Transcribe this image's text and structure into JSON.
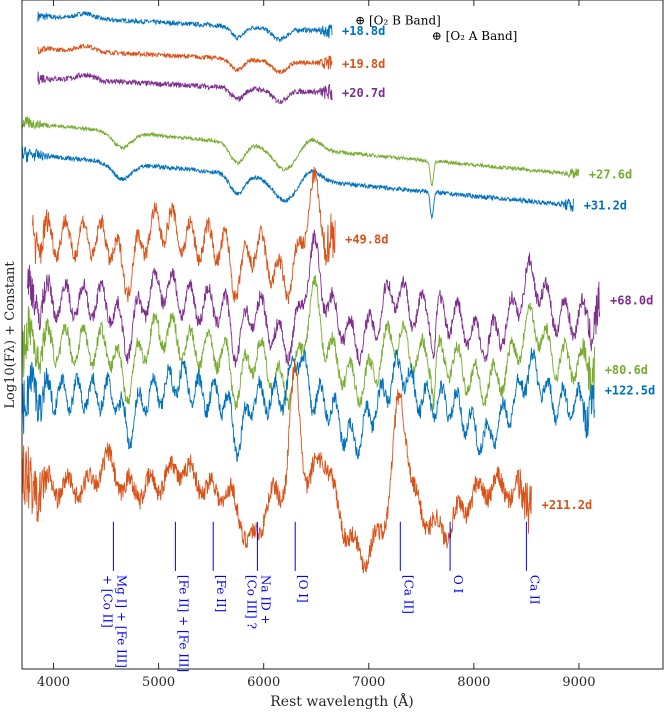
{
  "chart_data": {
    "type": "line",
    "xlabel": "Rest wavelength (Å)",
    "ylabel": "Log10(Fλ) + Constant",
    "xlim": [
      3700,
      9800
    ],
    "x_ticks": [
      4000,
      5000,
      6000,
      7000,
      8000,
      9000
    ],
    "x_tick_labels": [
      "4000",
      "5000",
      "6000",
      "7000",
      "8000",
      "9000"
    ],
    "ylim": [
      -15,
      0
    ],
    "y_ticks_shown": false,
    "series": [
      {
        "name": "+18.8d",
        "label": "+18.8d",
        "color": "#0072BD",
        "start": 3850,
        "end": 6650,
        "offset": -0.72,
        "noise": 0.05,
        "shape": "early"
      },
      {
        "name": "+19.8d",
        "label": "+19.8d",
        "color": "#D95319",
        "start": 3850,
        "end": 6650,
        "offset": -1.45,
        "noise": 0.05,
        "shape": "early"
      },
      {
        "name": "+20.7d",
        "label": "+20.7d",
        "color": "#7E2F8E",
        "start": 3850,
        "end": 6650,
        "offset": -2.1,
        "noise": 0.06,
        "shape": "early"
      },
      {
        "name": "+27.6d",
        "label": "+27.6d",
        "color": "#77AC30",
        "start": 3700,
        "end": 9000,
        "offset": -3.05,
        "noise": 0.04,
        "shape": "mid"
      },
      {
        "name": "+31.2d",
        "label": "+31.2d",
        "color": "#0072BD",
        "start": 3700,
        "end": 8950,
        "offset": -3.75,
        "noise": 0.05,
        "shape": "mid"
      },
      {
        "name": "+49.8d",
        "label": "+49.8d",
        "color": "#D95319",
        "start": 3800,
        "end": 6680,
        "offset": -5.3,
        "noise": 0.18,
        "shape": "neb1"
      },
      {
        "name": "+68.0d",
        "label": "+68.0d",
        "color": "#7E2F8E",
        "start": 3750,
        "end": 9200,
        "offset": -6.7,
        "noise": 0.16,
        "shape": "neb1"
      },
      {
        "name": "+80.6d",
        "label": "+80.6d",
        "color": "#77AC30",
        "start": 3700,
        "end": 9150,
        "offset": -7.7,
        "noise": 0.15,
        "shape": "neb1"
      },
      {
        "name": "+122.5d",
        "label": "+122.5d",
        "color": "#0072BD",
        "start": 3700,
        "end": 9150,
        "offset": -8.8,
        "noise": 0.17,
        "shape": "neb2"
      },
      {
        "name": "+211.2d",
        "label": "+211.2d",
        "color": "#D95319",
        "start": 3700,
        "end": 8550,
        "offset": -10.9,
        "noise": 0.22,
        "shape": "late"
      }
    ],
    "annotations": {
      "telluric": [
        {
          "symbol": "⊕",
          "text": "[O₂ B Band]",
          "wavelength": 6870,
          "level": -0.55
        },
        {
          "symbol": "⊕",
          "text": "[O₂ A Band]",
          "wavelength": 7600,
          "level": -0.9
        }
      ],
      "lines": [
        {
          "text": "Mg I] + [Fe III]",
          "text2": "+ [Co II]",
          "wavelength": 4570
        },
        {
          "text": "[Fe II] + [Fe III]",
          "text2": "",
          "wavelength": 5160
        },
        {
          "text": "[Fe II]",
          "text2": "",
          "wavelength": 5520
        },
        {
          "text": "Na ID +",
          "text2": "[Co III] ?",
          "wavelength": 5940
        },
        {
          "text": "[O I]",
          "text2": "",
          "wavelength": 6300
        },
        {
          "text": "[Ca II]",
          "text2": "",
          "wavelength": 7300
        },
        {
          "text": "O I",
          "text2": "",
          "wavelength": 7774
        },
        {
          "text": "Ca II",
          "text2": "",
          "wavelength": 8500
        }
      ],
      "line_color": "#0000FF"
    }
  }
}
